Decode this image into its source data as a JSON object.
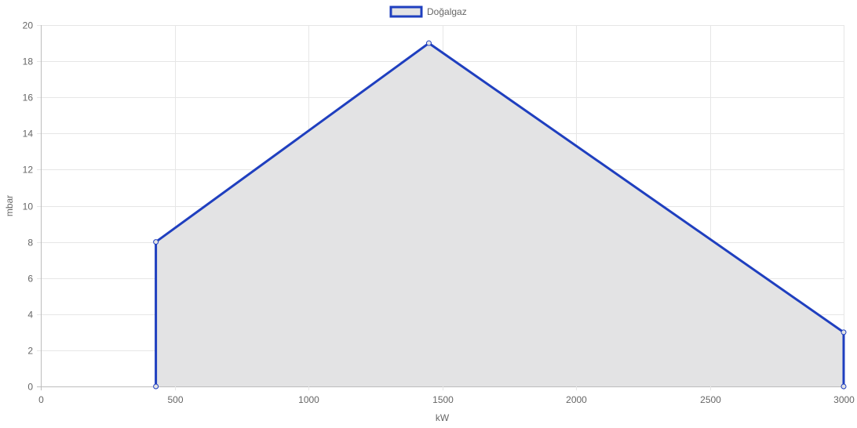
{
  "chart_data": {
    "type": "area",
    "xlabel": "kW",
    "ylabel": "mbar",
    "xlim": [
      0,
      3000
    ],
    "ylim": [
      0,
      20
    ],
    "x_ticks": [
      0,
      500,
      1000,
      1500,
      2000,
      2500,
      3000
    ],
    "y_ticks": [
      0,
      2,
      4,
      6,
      8,
      10,
      12,
      14,
      16,
      18,
      20
    ],
    "grid": true,
    "legend_position": "top-center",
    "series": [
      {
        "name": "Doğalgaz",
        "color": "#1f3fbf",
        "fill": "#e3e3e4",
        "points": [
          {
            "x": 430,
            "y": 0
          },
          {
            "x": 430,
            "y": 8
          },
          {
            "x": 1450,
            "y": 19
          },
          {
            "x": 3000,
            "y": 3
          },
          {
            "x": 3000,
            "y": 0
          }
        ]
      }
    ]
  }
}
